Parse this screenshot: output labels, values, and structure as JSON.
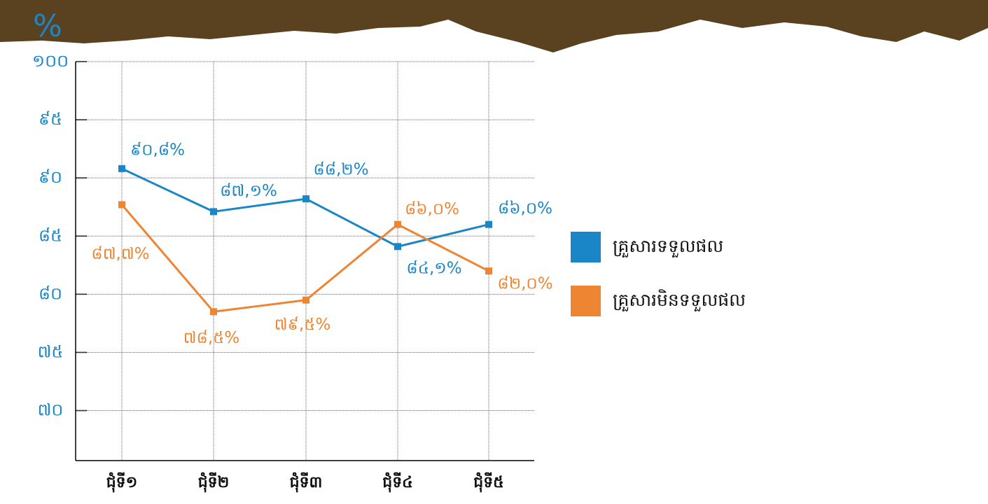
{
  "chart_data": {
    "type": "line",
    "y_label": "%",
    "categories": [
      "ជុំទី១",
      "ជុំទី២",
      "ជុំទី៣",
      "ជុំទី៤",
      "ជុំទី៥"
    ],
    "series": [
      {
        "name": "គ្រួសារទទួលផល",
        "color": "#1a86c8",
        "values": [
          90.8,
          87.1,
          88.2,
          84.1,
          86.0
        ],
        "value_labels": [
          "៩០,៨%",
          "៨៧,១%",
          "៨៨,២%",
          "៨៤,១%",
          "៨៦,០%"
        ]
      },
      {
        "name": "គ្រួសារមិនទទួលផល",
        "color": "#ee8533",
        "values": [
          87.7,
          78.5,
          79.5,
          86.0,
          82.0
        ],
        "value_labels": [
          "៨៧,៧%",
          "៧៨,៥%",
          "៧៩,៥%",
          "៨៦,០%",
          "៨២,០%"
        ]
      }
    ],
    "ylim": [
      65.7,
      100
    ],
    "yticks": [
      {
        "value": 100,
        "label": "១០០"
      },
      {
        "value": 95,
        "label": "៩៥"
      },
      {
        "value": 90,
        "label": "៩០"
      },
      {
        "value": 85,
        "label": "៨៥"
      },
      {
        "value": 80,
        "label": "៨០"
      },
      {
        "value": 75,
        "label": "៧៥"
      },
      {
        "value": 70,
        "label": "៧០"
      }
    ],
    "grid": true,
    "legend": "right"
  }
}
